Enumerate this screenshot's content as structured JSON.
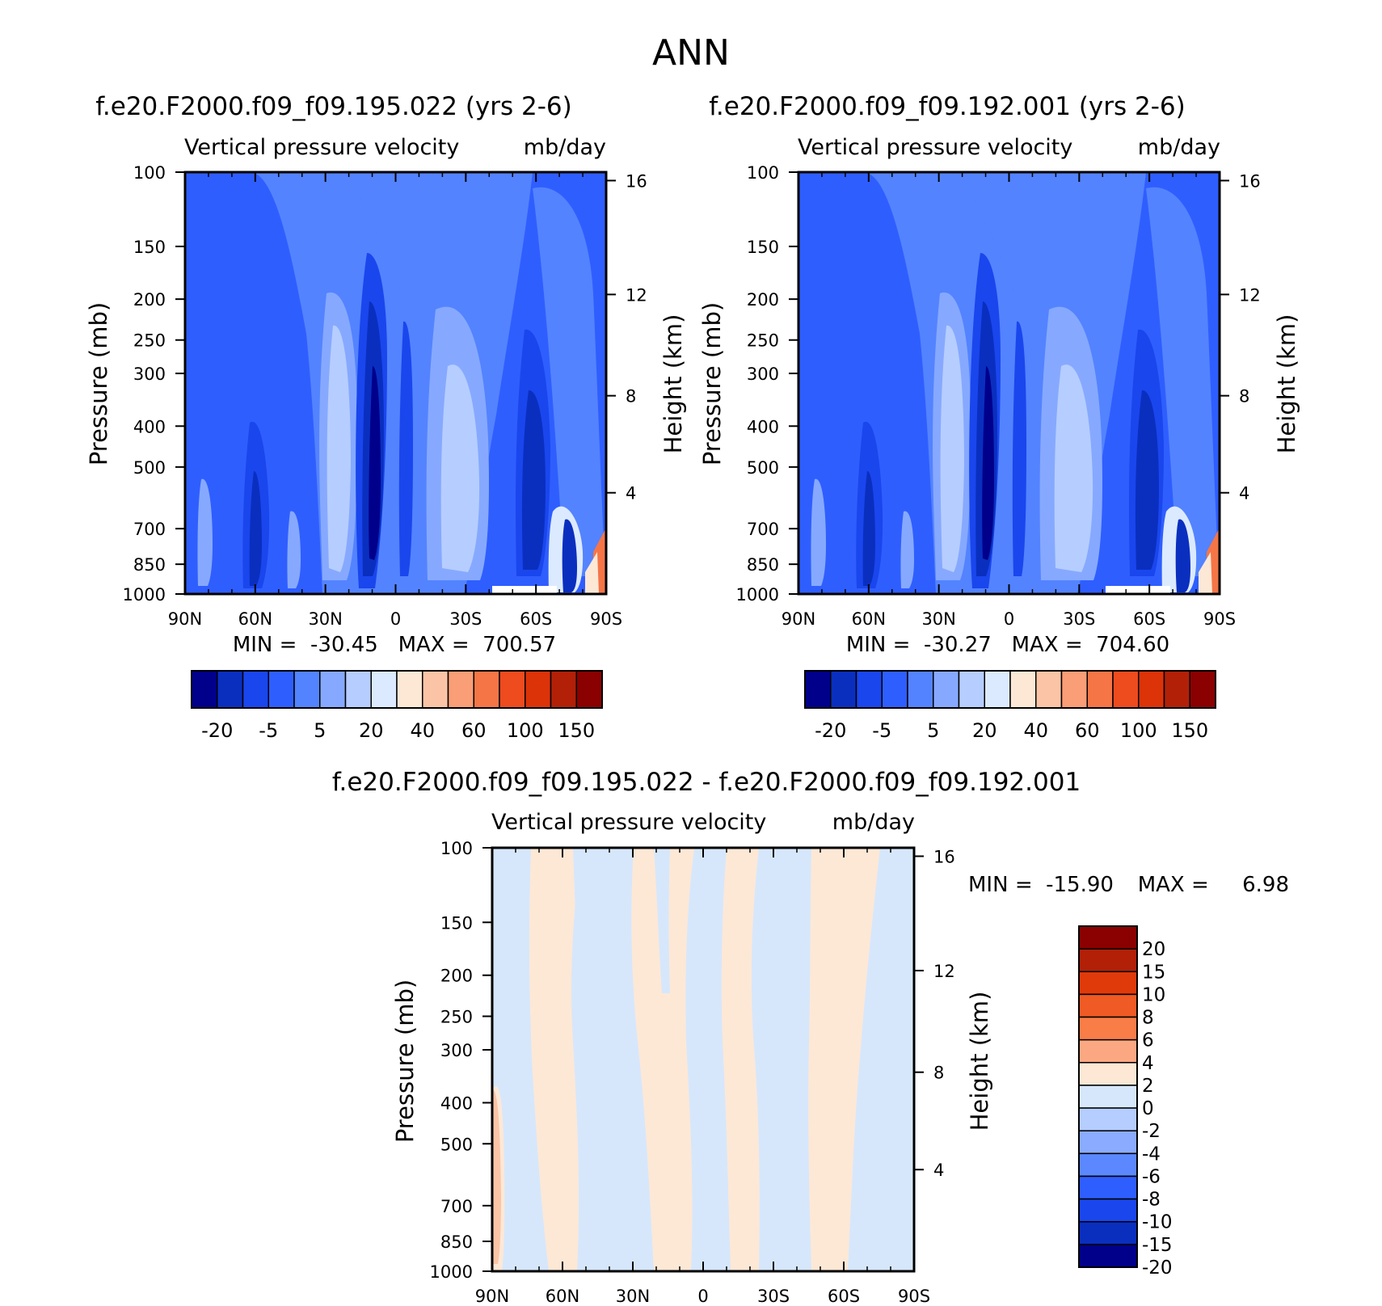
{
  "figure": {
    "title": "ANN"
  },
  "panels": [
    {
      "id": "p1",
      "title": "f.e20.F2000.f09_f09.195.022 (yrs 2-6)",
      "subtitle_left": "Vertical pressure velocity",
      "subtitle_right": "mb/day",
      "stats": "MIN =  -30.45   MAX =  700.57"
    },
    {
      "id": "p2",
      "title": "f.e20.F2000.f09_f09.192.001 (yrs 2-6)",
      "subtitle_left": "Vertical pressure velocity",
      "subtitle_right": "mb/day",
      "stats": "MIN =  -30.27   MAX =  704.60"
    },
    {
      "id": "p3",
      "title": "f.e20.F2000.f09_f09.195.022 - f.e20.F2000.f09_f09.192.001",
      "subtitle_left": "Vertical pressure velocity",
      "subtitle_right": "mb/day",
      "stats_min": "MIN =  -15.90",
      "stats_max": "MAX =     6.98"
    }
  ],
  "chart_data": [
    {
      "type": "heatmap",
      "panel": "f.e20.F2000.f09_f09.195.022 (yrs 2-6)",
      "title": "f.e20.F2000.f09_f09.195.022 (yrs 2-6)",
      "subtitle": "Vertical pressure velocity  mb/day",
      "xlabel": "",
      "ylabel": "Pressure (mb)",
      "ylabel_right": "Height (km)",
      "x_ticks": [
        "90N",
        "60N",
        "30N",
        "0",
        "30S",
        "60S",
        "90S"
      ],
      "y_ticks": [
        "100",
        "150",
        "200",
        "250",
        "300",
        "400",
        "500",
        "700",
        "850",
        "1000"
      ],
      "y_right_ticks": [
        "4",
        "8",
        "12",
        "16"
      ],
      "y_scale": "log",
      "ylim": [
        1000,
        100
      ],
      "min": -30.45,
      "max": 700.57,
      "colorbar_labels": [
        "-20",
        "-5",
        "5",
        "20",
        "40",
        "60",
        "100",
        "150"
      ]
    },
    {
      "type": "heatmap",
      "panel": "f.e20.F2000.f09_f09.192.001 (yrs 2-6)",
      "title": "f.e20.F2000.f09_f09.192.001 (yrs 2-6)",
      "subtitle": "Vertical pressure velocity  mb/day",
      "xlabel": "",
      "ylabel": "Pressure (mb)",
      "ylabel_right": "Height (km)",
      "x_ticks": [
        "90N",
        "60N",
        "30N",
        "0",
        "30S",
        "60S",
        "90S"
      ],
      "y_ticks": [
        "100",
        "150",
        "200",
        "250",
        "300",
        "400",
        "500",
        "700",
        "850",
        "1000"
      ],
      "y_right_ticks": [
        "4",
        "8",
        "12",
        "16"
      ],
      "y_scale": "log",
      "ylim": [
        1000,
        100
      ],
      "min": -30.27,
      "max": 704.6,
      "colorbar_labels": [
        "-20",
        "-5",
        "5",
        "20",
        "40",
        "60",
        "100",
        "150"
      ]
    },
    {
      "type": "heatmap",
      "panel": "f.e20.F2000.f09_f09.195.022 - f.e20.F2000.f09_f09.192.001",
      "title": "f.e20.F2000.f09_f09.195.022 - f.e20.F2000.f09_f09.192.001",
      "subtitle": "Vertical pressure velocity  mb/day",
      "xlabel": "",
      "ylabel": "Pressure (mb)",
      "ylabel_right": "Height (km)",
      "x_ticks": [
        "90N",
        "60N",
        "30N",
        "0",
        "30S",
        "60S",
        "90S"
      ],
      "y_ticks": [
        "100",
        "150",
        "200",
        "250",
        "300",
        "400",
        "500",
        "700",
        "850",
        "1000"
      ],
      "y_right_ticks": [
        "4",
        "8",
        "12",
        "16"
      ],
      "y_scale": "log",
      "ylim": [
        1000,
        100
      ],
      "min": -15.9,
      "max": 6.98,
      "colorbar_labels": [
        "20",
        "15",
        "10",
        "8",
        "6",
        "4",
        "2",
        "0",
        "-2",
        "-4",
        "-6",
        "-8",
        "-10",
        "-15",
        "-20"
      ]
    }
  ],
  "axis_labels": {
    "pressure": "Pressure (mb)",
    "height": "Height (km)"
  },
  "x_tick_labels": [
    "90N",
    "60N",
    "30N",
    "0",
    "30S",
    "60S",
    "90S"
  ],
  "y_tick_labels": [
    "100",
    "150",
    "200",
    "250",
    "300",
    "400",
    "500",
    "700",
    "850",
    "1000"
  ],
  "height_tick_labels": [
    "4",
    "8",
    "12",
    "16"
  ],
  "colorbar_top": {
    "labels": [
      "-20",
      "-5",
      "5",
      "20",
      "40",
      "60",
      "100",
      "150"
    ],
    "colors": [
      "#00008b",
      "#0a2fbf",
      "#1a46ee",
      "#2f5eff",
      "#5383ff",
      "#86a9ff",
      "#b6cdff",
      "#dceaff",
      "#fde8d6",
      "#fbc4a6",
      "#f99e76",
      "#f57547",
      "#ee4b1e",
      "#dc3309",
      "#b22008",
      "#8b0000"
    ]
  },
  "colorbar_diff": {
    "labels": [
      "20",
      "15",
      "10",
      "8",
      "6",
      "4",
      "2",
      "0",
      "-2",
      "-4",
      "-6",
      "-8",
      "-10",
      "-15",
      "-20"
    ],
    "colors": [
      "#8b0000",
      "#b22008",
      "#e03a0a",
      "#f05a24",
      "#f97d47",
      "#fba882",
      "#fde8d6",
      "#d6e7fc",
      "#b5cdff",
      "#8aabff",
      "#5c88ff",
      "#2f5eff",
      "#1a46ee",
      "#0a2fbf",
      "#00008b"
    ]
  },
  "field_colors": {
    "deep": "#00008b",
    "dark": "#0a2fbf",
    "strong": "#1a46ee",
    "mid": "#2f5eff",
    "light": "#5383ff",
    "pale": "#86a9ff",
    "paler": "#b6cdff",
    "faint": "#dceaff",
    "diff_pos": "#fde8d6",
    "diff_neg": "#d6e7fc",
    "diff_pos2": "#fbc4a6"
  }
}
